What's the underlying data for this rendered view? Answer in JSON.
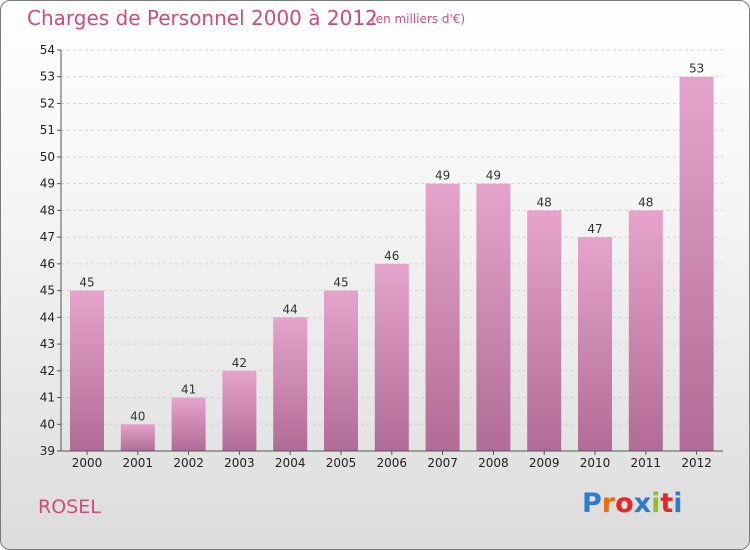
{
  "header": {
    "title": "Charges de Personnel 2000 à 2012",
    "subtitle": "(en milliers d'€)"
  },
  "footer": {
    "commune": "ROSEL",
    "logo": "Proxiti"
  },
  "colors": {
    "title": "#d24a7b",
    "bar_light": "#e6a3cb",
    "bar_dark": "#b06c96",
    "logo_letters": [
      "#2c7bd1",
      "#ee6a10",
      "#e82626",
      "#2c7bd1",
      "#8bc22b",
      "#e82626",
      "#2c7bd1"
    ]
  },
  "chart_data": {
    "type": "bar",
    "title": "Charges de Personnel 2000 à 2012",
    "subtitle": "(en milliers d'€)",
    "xlabel": "",
    "ylabel": "",
    "categories": [
      "2000",
      "2001",
      "2002",
      "2003",
      "2004",
      "2005",
      "2006",
      "2007",
      "2008",
      "2009",
      "2010",
      "2011",
      "2012"
    ],
    "values": [
      45,
      40,
      41,
      42,
      44,
      45,
      46,
      49,
      49,
      48,
      47,
      48,
      53
    ],
    "ylim": [
      39,
      54
    ],
    "yticks": [
      39,
      40,
      41,
      42,
      43,
      44,
      45,
      46,
      47,
      48,
      49,
      50,
      51,
      52,
      53,
      54
    ],
    "grid": true,
    "legend": "none"
  }
}
